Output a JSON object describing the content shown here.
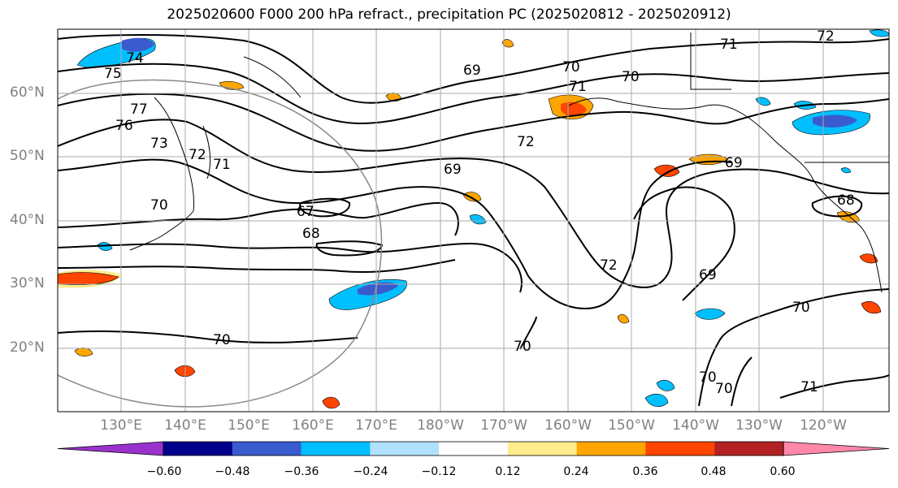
{
  "title": "2025020600 F000 200 hPa refract., precipitation PC (2025020812 - 2025020912)",
  "lat_labels": [
    "60°N",
    "50°N",
    "40°N",
    "30°N",
    "20°N"
  ],
  "lon_labels": [
    "130°E",
    "140°E",
    "150°E",
    "160°E",
    "170°E",
    "180°W",
    "170°W",
    "160°W",
    "150°W",
    "140°W",
    "130°W",
    "120°W"
  ],
  "contour_labels": [
    "74",
    "75",
    "77",
    "76",
    "73",
    "72",
    "71",
    "70",
    "67",
    "68",
    "69",
    "70",
    "71",
    "70",
    "72",
    "69",
    "69",
    "72",
    "69",
    "70",
    "70",
    "70",
    "70",
    "71",
    "68",
    "71",
    "72",
    "70"
  ],
  "colorbar": {
    "ticks": [
      "−0.60",
      "−0.48",
      "−0.36",
      "−0.24",
      "−0.12",
      "0.12",
      "0.24",
      "0.36",
      "0.48",
      "0.60"
    ],
    "colors": [
      "#9932cc",
      "#00008b",
      "#3a5bcd",
      "#00bfff",
      "#b0e2ff",
      "#ffffff",
      "#ffec8b",
      "#ffa500",
      "#ff4500",
      "#b22222",
      "#ff88aa"
    ]
  }
}
